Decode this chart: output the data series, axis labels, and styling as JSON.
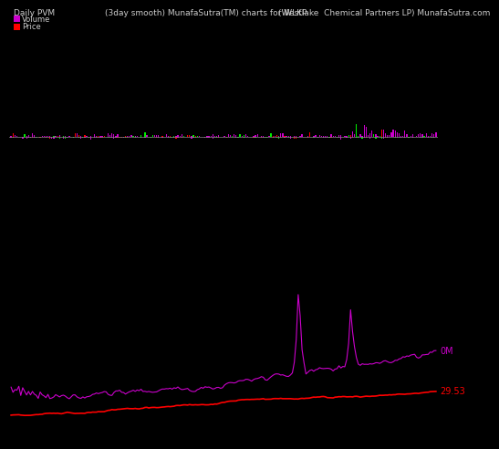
{
  "title_left": "Daily PVM",
  "title_center": "(3day smooth) MunafaSutra(TM) charts for WLKP",
  "title_right": "(Westlake  Chemical Partners LP) MunafaSutra.com",
  "legend_volume_color": "#cc00cc",
  "legend_price_color": "#ff0000",
  "background_color": "#000000",
  "text_color": "#cccccc",
  "label_0M": "0M",
  "label_price": "29.53",
  "n_bars": 220,
  "volume_bar_color_up": "#cc00cc",
  "volume_bar_color_down": "#00ee00",
  "volume_bar_color_red": "#ff0000",
  "price_line_color": "#ff0000",
  "volume_line_color": "#cc00cc",
  "title_fontsize": 6.5,
  "legend_fontsize": 6.0
}
